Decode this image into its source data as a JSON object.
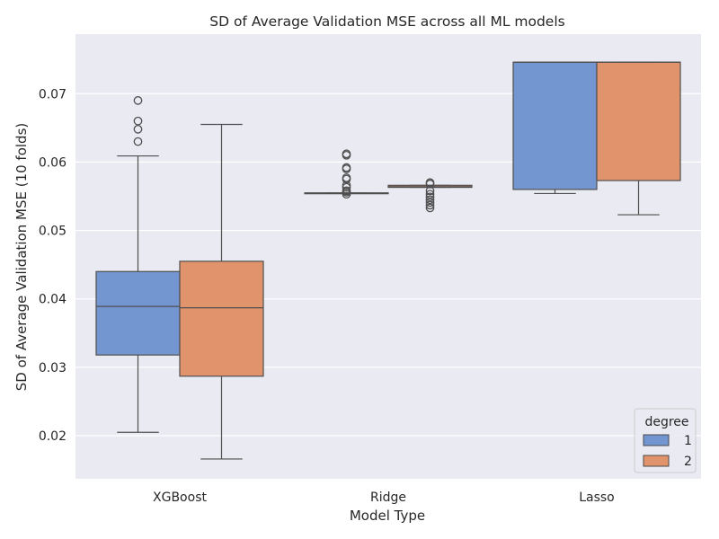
{
  "chart_data": {
    "type": "box",
    "title": "SD of Average Validation MSE across all ML models",
    "xlabel": "Model Type",
    "ylabel": "SD of Average Validation MSE (10 folds)",
    "categories": [
      "XGBoost",
      "Ridge",
      "Lasso"
    ],
    "ylim": [
      0.0137,
      0.0787
    ],
    "yticks": [
      "0.02",
      "0.03",
      "0.04",
      "0.05",
      "0.06",
      "0.07"
    ],
    "grid": true,
    "legend": {
      "title": "degree",
      "position": "bottom-right"
    },
    "series": [
      {
        "name": "1",
        "color": "#7396d1",
        "boxes": [
          {
            "category": "XGBoost",
            "whisker_low": 0.0205,
            "q1": 0.0318,
            "median": 0.0389,
            "q3": 0.044,
            "whisker_high": 0.0609,
            "outliers": [
              0.063,
              0.0648,
              0.066,
              0.069
            ]
          },
          {
            "category": "Ridge",
            "whisker_low": 0.0554,
            "q1": 0.0554,
            "median": 0.0554,
            "q3": 0.0555,
            "whisker_high": 0.0555,
            "outliers": [
              0.0553,
              0.0556,
              0.0558,
              0.0563,
              0.0566,
              0.0575,
              0.0577,
              0.059,
              0.0592,
              0.061,
              0.0612
            ]
          },
          {
            "category": "Lasso",
            "whisker_low": 0.0554,
            "q1": 0.056,
            "median": 0.0746,
            "q3": 0.0746,
            "whisker_high": 0.0746,
            "outliers": []
          }
        ]
      },
      {
        "name": "2",
        "color": "#e1946b",
        "boxes": [
          {
            "category": "XGBoost",
            "whisker_low": 0.0166,
            "q1": 0.0287,
            "median": 0.0387,
            "q3": 0.0455,
            "whisker_high": 0.0655,
            "outliers": []
          },
          {
            "category": "Ridge",
            "whisker_low": 0.0563,
            "q1": 0.0563,
            "median": 0.0564,
            "q3": 0.0566,
            "whisker_high": 0.0566,
            "outliers": [
              0.0533,
              0.0537,
              0.0541,
              0.0545,
              0.0549,
              0.0553,
              0.0558,
              0.0568,
              0.057
            ]
          },
          {
            "category": "Lasso",
            "whisker_low": 0.0523,
            "q1": 0.0573,
            "median": 0.0746,
            "q3": 0.0746,
            "whisker_high": 0.0746,
            "outliers": []
          }
        ]
      }
    ]
  }
}
